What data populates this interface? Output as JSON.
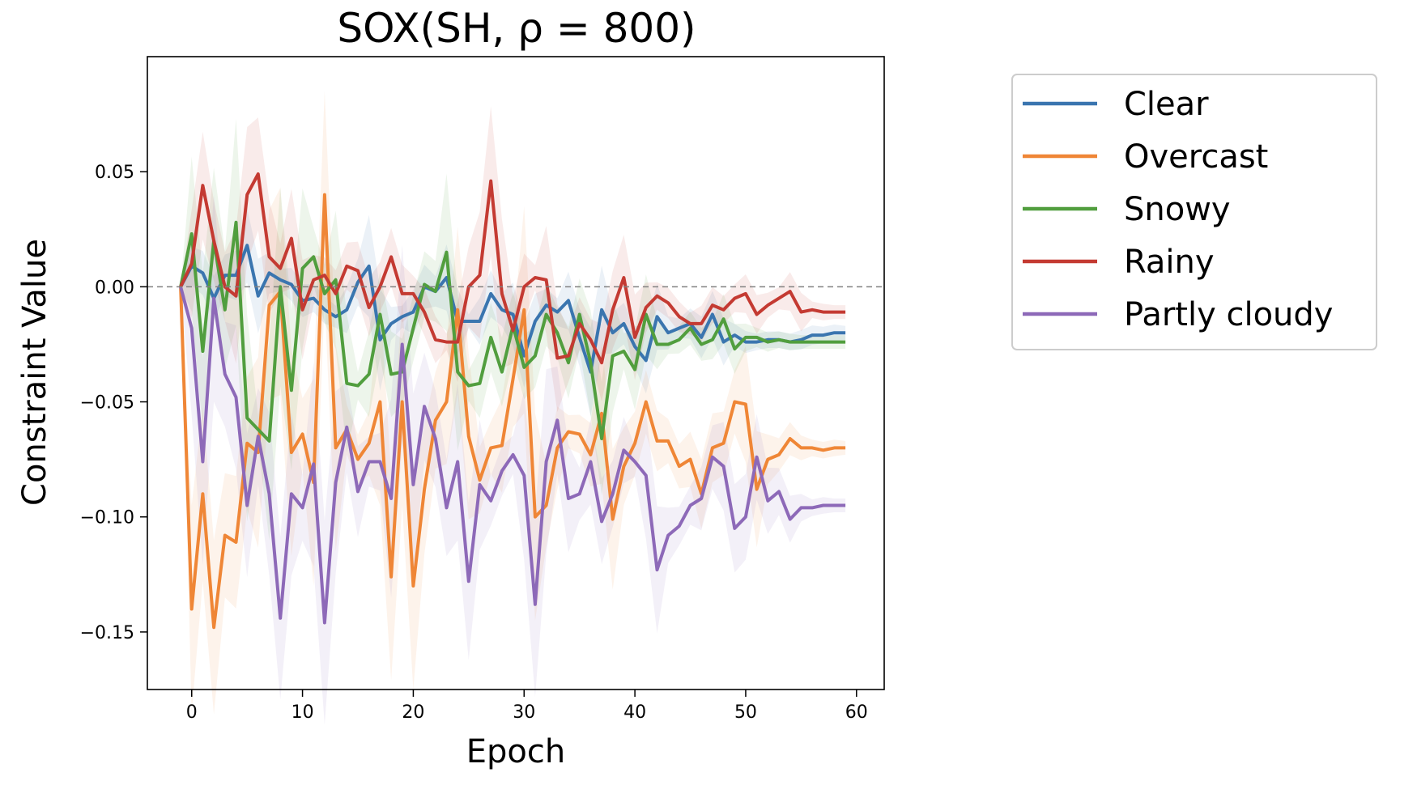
{
  "chart_data": {
    "type": "line",
    "title": "SOX(SH,  ρ =  800)",
    "xlabel": "Epoch",
    "ylabel": "Constraint Value",
    "xlim": [
      -4,
      62.5
    ],
    "ylim": [
      -0.175,
      0.1
    ],
    "xticks": [
      0,
      10,
      20,
      30,
      40,
      50,
      60
    ],
    "yticks": [
      0.05,
      0.0,
      -0.05,
      -0.1,
      -0.15
    ],
    "ytick_labels": [
      "0.05",
      "0.00",
      "−0.05",
      "−0.10",
      "−0.15"
    ],
    "reference_line": 0.0,
    "grid": false,
    "legend_position": "outside-right",
    "x": [
      -1,
      0,
      1,
      2,
      3,
      4,
      5,
      6,
      7,
      8,
      9,
      10,
      11,
      12,
      13,
      14,
      15,
      16,
      17,
      18,
      19,
      20,
      21,
      22,
      23,
      24,
      25,
      26,
      27,
      28,
      29,
      30,
      31,
      32,
      33,
      34,
      35,
      36,
      37,
      38,
      39,
      40,
      41,
      42,
      43,
      44,
      45,
      46,
      47,
      48,
      49,
      50,
      51,
      52,
      53,
      54,
      55,
      56,
      57,
      58,
      59
    ],
    "series": [
      {
        "name": "Clear",
        "color": "#3a75af",
        "values": [
          0.0,
          0.009,
          0.006,
          -0.005,
          0.005,
          0.005,
          0.018,
          -0.004,
          0.006,
          0.003,
          0.001,
          -0.006,
          -0.005,
          -0.01,
          -0.013,
          -0.01,
          0.002,
          0.009,
          -0.023,
          -0.016,
          -0.013,
          -0.011,
          0.0,
          -0.002,
          0.004,
          -0.015,
          -0.015,
          -0.015,
          -0.003,
          -0.01,
          -0.012,
          -0.03,
          -0.015,
          -0.008,
          -0.011,
          -0.006,
          -0.022,
          -0.037,
          -0.01,
          -0.02,
          -0.016,
          -0.026,
          -0.032,
          -0.013,
          -0.02,
          -0.018,
          -0.016,
          -0.022,
          -0.012,
          -0.024,
          -0.021,
          -0.024,
          -0.024,
          -0.023,
          -0.023,
          -0.024,
          -0.023,
          -0.021,
          -0.021,
          -0.02,
          -0.02
        ]
      },
      {
        "name": "Overcast",
        "color": "#ef8636",
        "values": [
          0.0,
          -0.14,
          -0.09,
          -0.148,
          -0.108,
          -0.111,
          -0.068,
          -0.072,
          -0.008,
          -0.002,
          -0.072,
          -0.064,
          -0.085,
          0.04,
          -0.07,
          -0.062,
          -0.075,
          -0.068,
          -0.05,
          -0.126,
          -0.05,
          -0.13,
          -0.088,
          -0.058,
          -0.05,
          -0.01,
          -0.065,
          -0.084,
          -0.07,
          -0.069,
          -0.04,
          -0.01,
          -0.1,
          -0.095,
          -0.07,
          -0.063,
          -0.064,
          -0.073,
          -0.055,
          -0.101,
          -0.078,
          -0.068,
          -0.05,
          -0.067,
          -0.067,
          -0.078,
          -0.075,
          -0.09,
          -0.07,
          -0.068,
          -0.05,
          -0.051,
          -0.088,
          -0.075,
          -0.073,
          -0.066,
          -0.07,
          -0.07,
          -0.071,
          -0.07,
          -0.07
        ]
      },
      {
        "name": "Snowy",
        "color": "#519e3e",
        "values": [
          0.0,
          0.023,
          -0.028,
          0.02,
          -0.01,
          0.028,
          -0.057,
          -0.062,
          -0.067,
          0.0,
          -0.045,
          0.008,
          0.013,
          -0.003,
          0.003,
          -0.042,
          -0.043,
          -0.038,
          -0.012,
          -0.038,
          -0.037,
          -0.018,
          0.001,
          -0.002,
          0.015,
          -0.037,
          -0.043,
          -0.042,
          -0.022,
          -0.037,
          -0.017,
          -0.035,
          -0.03,
          -0.012,
          -0.02,
          -0.033,
          -0.012,
          -0.033,
          -0.066,
          -0.03,
          -0.028,
          -0.036,
          -0.012,
          -0.025,
          -0.025,
          -0.023,
          -0.018,
          -0.025,
          -0.023,
          -0.014,
          -0.027,
          -0.022,
          -0.022,
          -0.024,
          -0.023,
          -0.024,
          -0.024,
          -0.024,
          -0.024,
          -0.024,
          -0.024
        ]
      },
      {
        "name": "Rainy",
        "color": "#c43a32",
        "values": [
          0.0,
          0.01,
          0.044,
          0.02,
          0.0,
          -0.004,
          0.04,
          0.049,
          0.013,
          0.008,
          0.021,
          -0.01,
          0.003,
          0.005,
          -0.003,
          0.009,
          0.007,
          -0.009,
          0.0,
          0.013,
          -0.003,
          -0.003,
          -0.011,
          -0.023,
          -0.024,
          -0.024,
          0.0,
          0.005,
          0.046,
          -0.003,
          -0.019,
          0.0,
          0.004,
          0.003,
          -0.031,
          -0.03,
          -0.016,
          -0.023,
          -0.033,
          -0.01,
          0.004,
          -0.022,
          -0.009,
          -0.004,
          -0.007,
          -0.013,
          -0.016,
          -0.016,
          -0.008,
          -0.01,
          -0.005,
          -0.003,
          -0.012,
          -0.008,
          -0.005,
          -0.002,
          -0.011,
          -0.01,
          -0.011,
          -0.011,
          -0.011
        ]
      },
      {
        "name": "Partly cloudy",
        "color": "#8d69b8",
        "values": [
          0.0,
          -0.018,
          -0.076,
          -0.005,
          -0.038,
          -0.048,
          -0.095,
          -0.065,
          -0.09,
          -0.144,
          -0.09,
          -0.096,
          -0.077,
          -0.146,
          -0.085,
          -0.061,
          -0.089,
          -0.076,
          -0.076,
          -0.092,
          -0.025,
          -0.086,
          -0.052,
          -0.066,
          -0.096,
          -0.076,
          -0.128,
          -0.086,
          -0.093,
          -0.08,
          -0.073,
          -0.082,
          -0.138,
          -0.076,
          -0.058,
          -0.092,
          -0.09,
          -0.076,
          -0.102,
          -0.09,
          -0.071,
          -0.076,
          -0.082,
          -0.123,
          -0.108,
          -0.104,
          -0.095,
          -0.092,
          -0.074,
          -0.078,
          -0.105,
          -0.1,
          -0.074,
          -0.093,
          -0.089,
          -0.101,
          -0.096,
          -0.096,
          -0.095,
          -0.095,
          -0.095
        ]
      }
    ]
  }
}
